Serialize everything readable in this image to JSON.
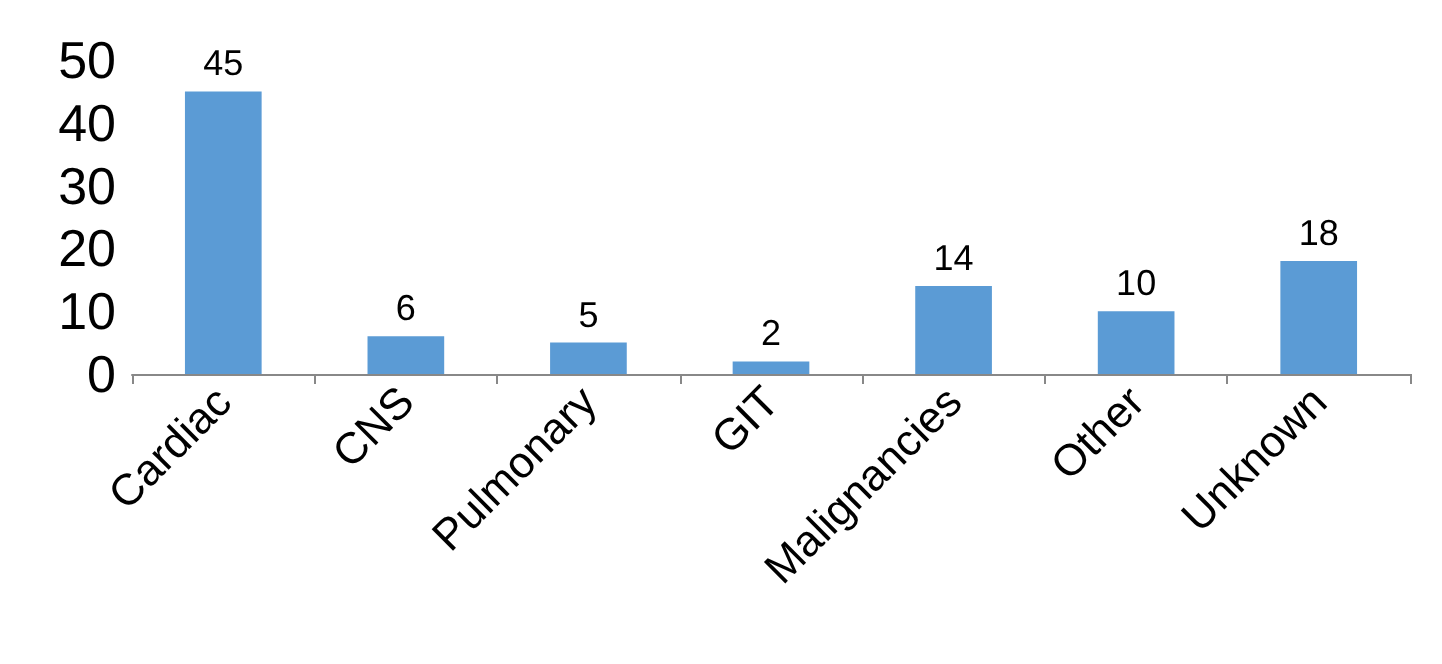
{
  "chart_data": {
    "type": "bar",
    "categories": [
      "Cardiac",
      "CNS",
      "Pulmonary",
      "GIT",
      "Malignancies",
      "Other",
      "Unknown"
    ],
    "values": [
      45,
      6,
      5,
      2,
      14,
      10,
      18
    ],
    "color": "#5b9bd5",
    "ylim": [
      0,
      50
    ],
    "yticks": [
      0,
      10,
      20,
      30,
      40,
      50
    ],
    "grid": false,
    "data_labels": true
  }
}
